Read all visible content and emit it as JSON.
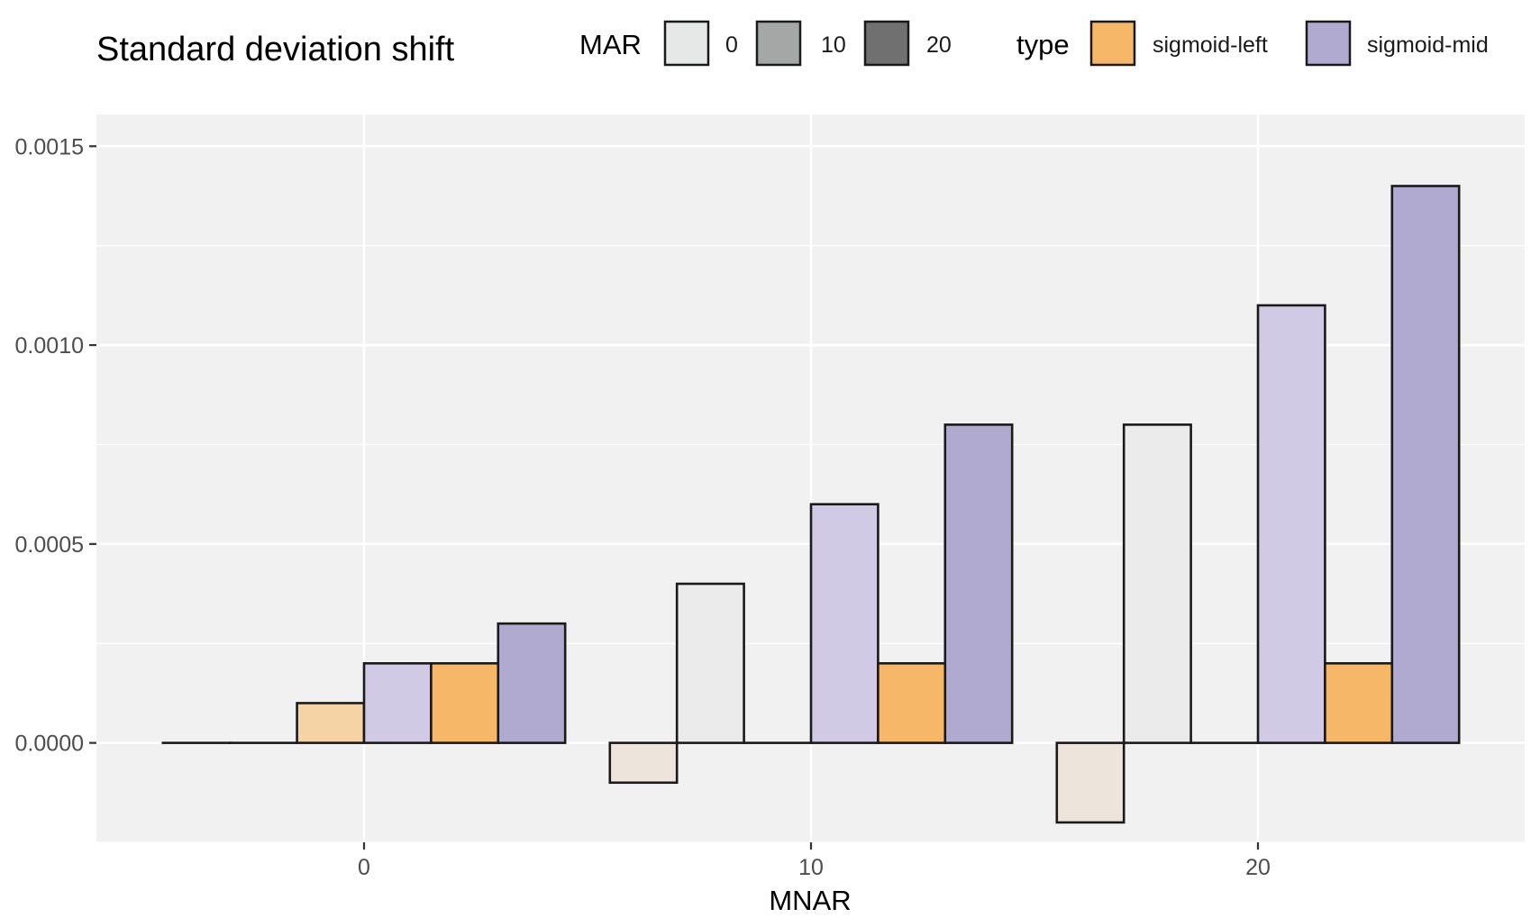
{
  "chart_data": {
    "type": "bar",
    "title": "Standard deviation shift",
    "xlabel": "MNAR",
    "ylabel": "",
    "categories": [
      "0",
      "10",
      "20"
    ],
    "y_ticks": [
      "0.0000",
      "0.0005",
      "0.0010",
      "0.0015"
    ],
    "ylim": [
      -0.00025,
      0.00158
    ],
    "grid": true,
    "legend_position": "top",
    "legends": {
      "mar": {
        "title": "MAR",
        "items": [
          "0",
          "10",
          "20"
        ],
        "swatch_colors": [
          "#e6e7e7",
          "#a5a6a6",
          "#707070"
        ]
      },
      "type": {
        "title": "type",
        "items": [
          "sigmoid-left",
          "sigmoid-mid"
        ],
        "swatch_colors": [
          "#f7b768",
          "#b0aad1"
        ]
      }
    },
    "series": [
      {
        "mar": "0",
        "type": "sigmoid-left",
        "values": [
          0,
          -0.0001,
          -0.0002
        ],
        "fill": "#ede5dc"
      },
      {
        "mar": "0",
        "type": "sigmoid-mid",
        "values": [
          0,
          0.0004,
          0.0008
        ],
        "fill": "#ebebeb"
      },
      {
        "mar": "10",
        "type": "sigmoid-left",
        "values": [
          0.0001,
          0,
          0
        ],
        "fill": "#f6d3a4"
      },
      {
        "mar": "10",
        "type": "sigmoid-mid",
        "values": [
          0.0002,
          0.0006,
          0.0011
        ],
        "fill": "#d1cae5"
      },
      {
        "mar": "20",
        "type": "sigmoid-left",
        "values": [
          0.0002,
          0.0002,
          0.0002
        ],
        "fill": "#f7b768"
      },
      {
        "mar": "20",
        "type": "sigmoid-mid",
        "values": [
          0.0003,
          0.0008,
          0.0014
        ],
        "fill": "#b0aad1"
      }
    ],
    "colors": {
      "panel_background": "#f1f1f1",
      "gridline": "#ffffff",
      "bar_outline": "#1a1a1a"
    }
  }
}
